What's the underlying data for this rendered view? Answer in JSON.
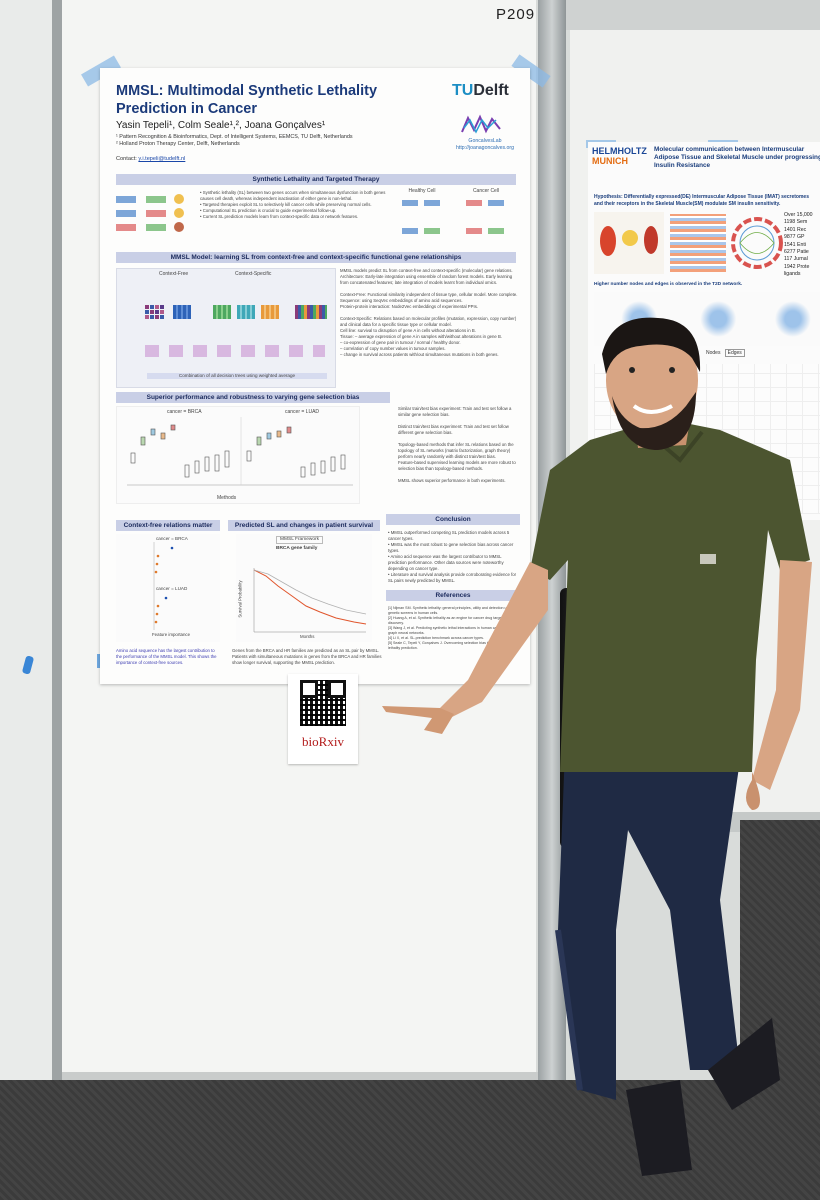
{
  "booth_label": "P209",
  "poster": {
    "title": "MMSL: Multimodal Synthetic Lethality Prediction in Cancer",
    "authors": "Yasin Tepeli¹, Colm Seale¹,², Joana Gonçalves¹",
    "affiliation_1": "¹ Pattern Recognition & Bioinformatics, Dept. of Intelligent Systems, EEMCS, TU Delft, Netherlands",
    "affiliation_2": "² Holland Proton Therapy Center, Delft, Netherlands",
    "contact_label": "Contact:",
    "contact_email": "y.i.tepeli@tudelft.nl",
    "logo_tudelft_prefix": "TU",
    "logo_tudelft_suffix": "Delft",
    "lab_handle": "GoncalvesLab",
    "lab_url": "http://joanagoncalves.org",
    "section_1": "Synthetic Lethality and Targeted Therapy",
    "section_2": "MMSL Model: learning SL from context-free and context-specific functional gene relationships",
    "section_3": "Superior performance and robustness to varying gene selection bias",
    "section_4": "Context-free relations matter",
    "section_5": "Predicted SL and changes in patient survival",
    "section_6": "Conclusion",
    "section_7": "References",
    "healthy_cell": "Healthy Cell",
    "cancer_cell": "Cancer Cell",
    "context_free": "Context-Free",
    "context_specific": "Context-Specific",
    "final_bar": "Combination of all decision trees using weighted average",
    "cancer_brca": "cancer = BRCA",
    "cancer_luad": "cancer = LUAD",
    "methods": "Methods",
    "feature_importance": "Feature importance",
    "mmsl_framework": "MMSL Framework",
    "brca_gene_family": "BRCA gene family",
    "months": "Months",
    "survival_probability": "Survival Probability",
    "qr_caption": "bioRxiv"
  },
  "poster2": {
    "brand_line1": "HELMHOLTZ",
    "brand_line2": "MUNICH",
    "title": "Molecular communication between Intermuscular Adipose Tissue and Skeletal Muscle under progressing Insulin Resistance",
    "hypothesis": "Hypothesis: Differentially expressed(DE) Intermuscular Adipose Tissue (IMAT) secretomes and their receptors in the Skeletal Muscle(SM) modulate SM insulin sensitivity.",
    "list": [
      "Over 15,000",
      "1198 Sem",
      "1401 Rec",
      "9877 GP",
      "1541 Enti",
      "6277 Patie",
      "117 Jurnal",
      "1942 Prote",
      "ligands"
    ],
    "higher": "Higher number nodes and edges is observed in the T2D network.",
    "nodes": "Nodes",
    "edges": "Edges"
  },
  "colors": {
    "title_blue": "#1b3a7a",
    "section_bar": "#c9cfe6",
    "shirt": "#4c5530",
    "jeans": "#1f2a44",
    "tape": "#8cb9e6"
  }
}
